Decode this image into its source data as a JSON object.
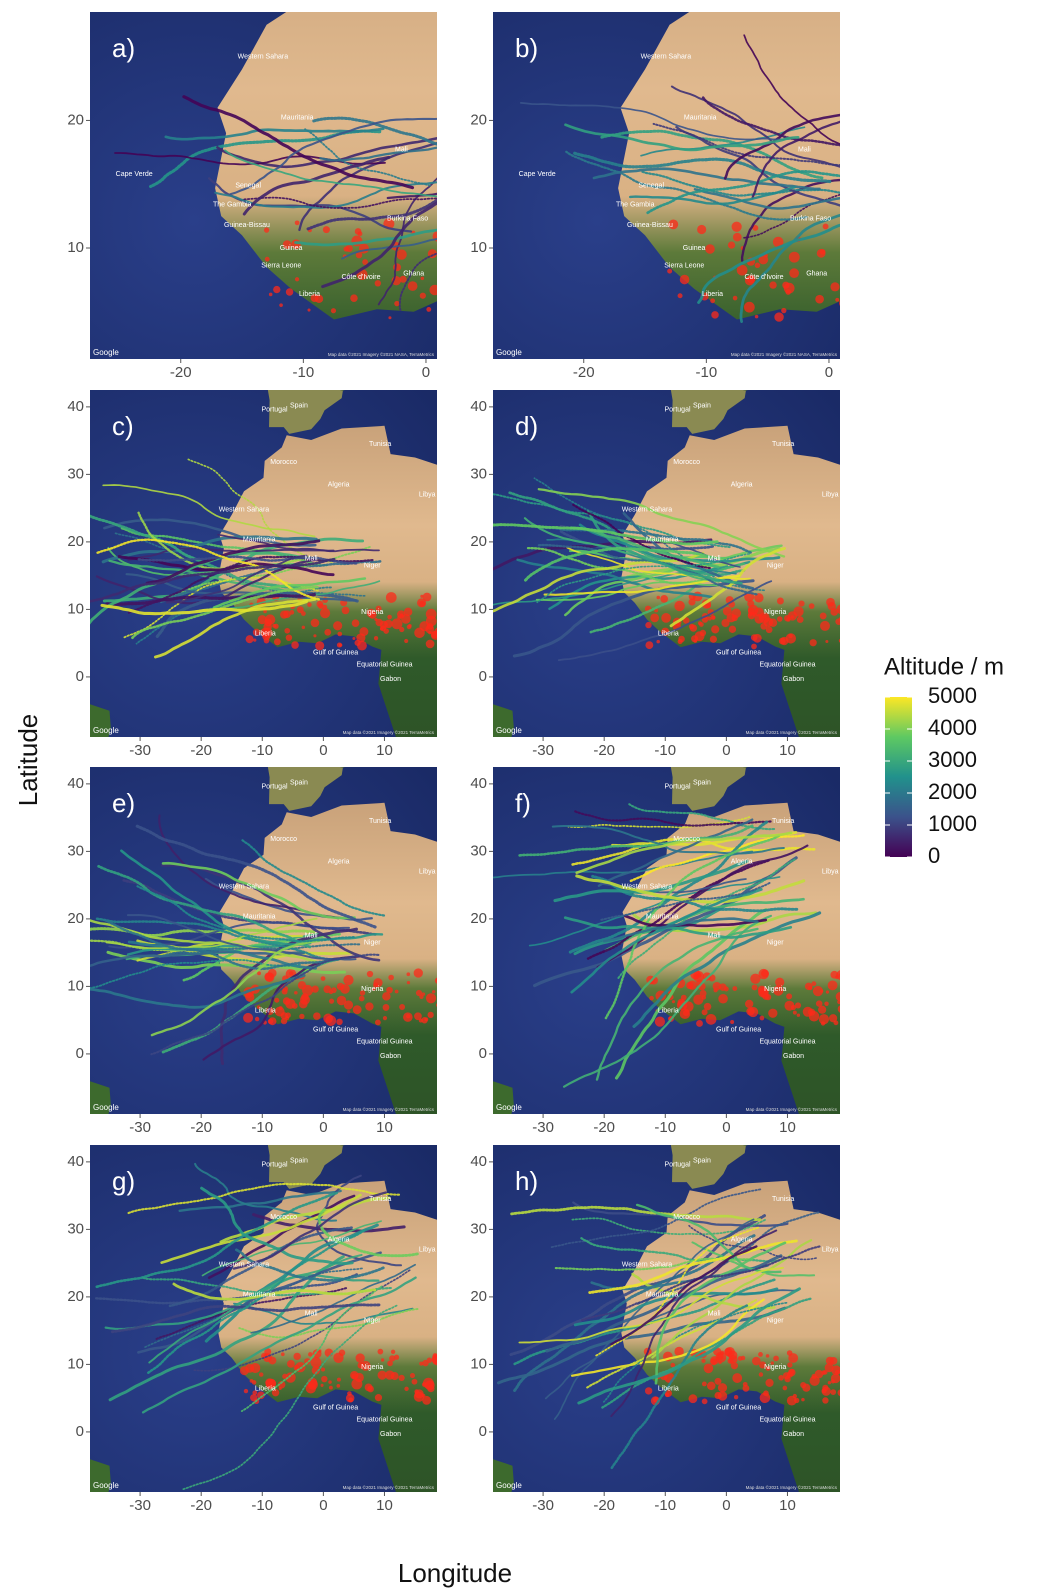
{
  "axis_labels": {
    "x": "Longitude",
    "y": "Latitude"
  },
  "legend": {
    "title": "Altitude / m",
    "ticks": [
      5000,
      4000,
      3000,
      2000,
      1000,
      0
    ],
    "lim": [
      0,
      5000
    ],
    "colors": [
      "#440154",
      "#3b528b",
      "#21918c",
      "#5ec962",
      "#fde725"
    ]
  },
  "panels": [
    {
      "label": "a)",
      "kind": "small",
      "xlim": [
        -27.4,
        0.9
      ],
      "ylim": [
        1.3,
        28.5
      ],
      "xticks": [
        -20,
        -10,
        0
      ],
      "yticks": [
        10,
        20
      ],
      "places": [
        "Western Sahara",
        "Mauritania",
        "Mali",
        "Cape Verde",
        "Senegal",
        "The Gambia",
        "Guinea-Bissau",
        "Guinea",
        "Sierra Leone",
        "Liberia",
        "Côte d'Ivoire",
        "Ghana",
        "Burkina Faso"
      ],
      "attribution": "Google",
      "credit": "Map data ©2021 Imagery ©2021 NASA, TerraMetrics"
    },
    {
      "label": "b)",
      "kind": "small",
      "xlim": [
        -27.4,
        0.9
      ],
      "ylim": [
        1.3,
        28.5
      ],
      "xticks": [
        -20,
        -10,
        0
      ],
      "yticks": [
        10,
        20
      ],
      "places": [
        "Western Sahara",
        "Mauritania",
        "Mali",
        "Cape Verde",
        "Senegal",
        "The Gambia",
        "Guinea-Bissau",
        "Guinea",
        "Sierra Leone",
        "Liberia",
        "Côte d'Ivoire",
        "Ghana",
        "Burkina Faso"
      ],
      "attribution": "Google",
      "credit": "Map data ©2021 Imagery ©2021 NASA, TerraMetrics"
    },
    {
      "label": "c)",
      "kind": "large",
      "xlim": [
        -38.2,
        18.6
      ],
      "ylim": [
        -8.9,
        42.5
      ],
      "xticks": [
        -30,
        -20,
        -10,
        0,
        10
      ],
      "yticks": [
        0,
        10,
        20,
        30,
        40
      ],
      "places": [
        "Portugal",
        "Spain",
        "Tunisia",
        "Morocco",
        "Western Sahara",
        "Algeria",
        "Libya",
        "Mauritania",
        "Mali",
        "Niger",
        "Nigeria",
        "Liberia",
        "Gulf of Guinea",
        "Equatorial Guinea",
        "Gabon"
      ],
      "attribution": "Google",
      "credit": "Map data ©2021 Imagery ©2021 TerraMetrics"
    },
    {
      "label": "d)",
      "kind": "large",
      "xlim": [
        -38.2,
        18.6
      ],
      "ylim": [
        -8.9,
        42.5
      ],
      "xticks": [
        -30,
        -20,
        -10,
        0,
        10
      ],
      "yticks": [
        0,
        10,
        20,
        30,
        40
      ],
      "places": [
        "Portugal",
        "Spain",
        "Tunisia",
        "Morocco",
        "Western Sahara",
        "Algeria",
        "Libya",
        "Mauritania",
        "Mali",
        "Niger",
        "Nigeria",
        "Liberia",
        "Gulf of Guinea",
        "Equatorial Guinea",
        "Gabon"
      ],
      "attribution": "Google",
      "credit": "Map data ©2021 Imagery ©2021 TerraMetrics"
    },
    {
      "label": "e)",
      "kind": "large",
      "xlim": [
        -38.2,
        18.6
      ],
      "ylim": [
        -8.9,
        42.5
      ],
      "xticks": [
        -30,
        -20,
        -10,
        0,
        10
      ],
      "yticks": [
        0,
        10,
        20,
        30,
        40
      ],
      "places": [
        "Portugal",
        "Spain",
        "Tunisia",
        "Morocco",
        "Western Sahara",
        "Algeria",
        "Libya",
        "Mauritania",
        "Mali",
        "Niger",
        "Nigeria",
        "Liberia",
        "Gulf of Guinea",
        "Equatorial Guinea",
        "Gabon"
      ],
      "attribution": "Google",
      "credit": "Map data ©2021 Imagery ©2021 TerraMetrics"
    },
    {
      "label": "f)",
      "kind": "large",
      "xlim": [
        -38.2,
        18.6
      ],
      "ylim": [
        -8.9,
        42.5
      ],
      "xticks": [
        -30,
        -20,
        -10,
        0,
        10
      ],
      "yticks": [
        0,
        10,
        20,
        30,
        40
      ],
      "places": [
        "Portugal",
        "Spain",
        "Tunisia",
        "Morocco",
        "Western Sahara",
        "Algeria",
        "Libya",
        "Mauritania",
        "Mali",
        "Niger",
        "Nigeria",
        "Liberia",
        "Gulf of Guinea",
        "Equatorial Guinea",
        "Gabon"
      ],
      "attribution": "Google",
      "credit": "Map data ©2021 Imagery ©2021 TerraMetrics"
    },
    {
      "label": "g)",
      "kind": "large",
      "xlim": [
        -38.2,
        18.6
      ],
      "ylim": [
        -8.9,
        42.5
      ],
      "xticks": [
        -30,
        -20,
        -10,
        0,
        10
      ],
      "yticks": [
        0,
        10,
        20,
        30,
        40
      ],
      "places": [
        "Portugal",
        "Spain",
        "Tunisia",
        "Morocco",
        "Western Sahara",
        "Algeria",
        "Libya",
        "Mauritania",
        "Mali",
        "Niger",
        "Nigeria",
        "Liberia",
        "Gulf of Guinea",
        "Equatorial Guinea",
        "Gabon"
      ],
      "attribution": "Google",
      "credit": "Map data ©2021 Imagery ©2021 TerraMetrics"
    },
    {
      "label": "h)",
      "kind": "large",
      "xlim": [
        -38.2,
        18.6
      ],
      "ylim": [
        -8.9,
        42.5
      ],
      "xticks": [
        -30,
        -20,
        -10,
        0,
        10
      ],
      "yticks": [
        0,
        10,
        20,
        30,
        40
      ],
      "places": [
        "Portugal",
        "Spain",
        "Tunisia",
        "Morocco",
        "Western Sahara",
        "Algeria",
        "Libya",
        "Mauritania",
        "Mali",
        "Niger",
        "Nigeria",
        "Liberia",
        "Gulf of Guinea",
        "Equatorial Guinea",
        "Gabon"
      ],
      "attribution": "Google",
      "credit": "Map data ©2021 Imagery ©2021 TerraMetrics"
    }
  ]
}
